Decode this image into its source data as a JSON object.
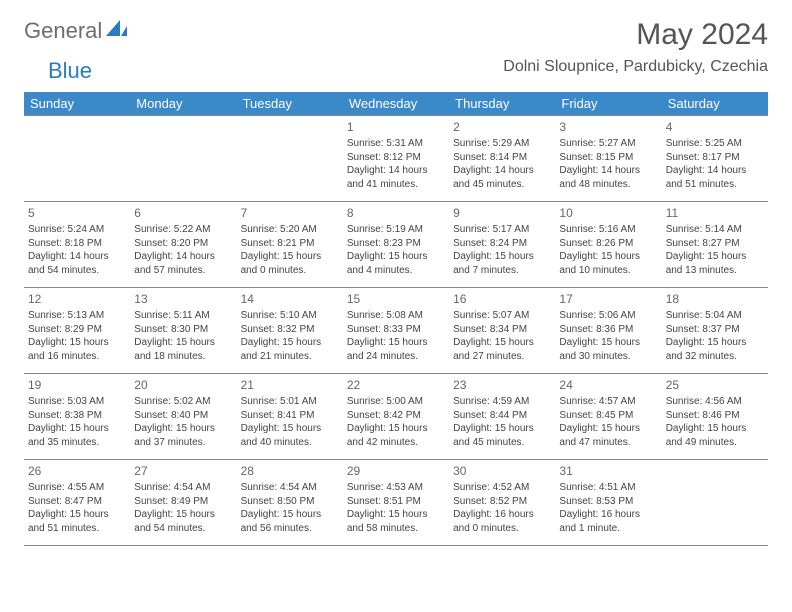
{
  "logo": {
    "text_general": "General",
    "text_blue": "Blue"
  },
  "title": "May 2024",
  "location": "Dolni Sloupnice, Pardubicky, Czechia",
  "colors": {
    "header_bg": "#3a89c9",
    "header_text": "#ffffff",
    "logo_gray": "#6e6e6e",
    "logo_blue": "#2b7bbf",
    "border": "#888888",
    "text": "#444444"
  },
  "weekdays": [
    "Sunday",
    "Monday",
    "Tuesday",
    "Wednesday",
    "Thursday",
    "Friday",
    "Saturday"
  ],
  "weeks": [
    [
      null,
      null,
      null,
      {
        "day": "1",
        "sunrise": "Sunrise: 5:31 AM",
        "sunset": "Sunset: 8:12 PM",
        "daylight": "Daylight: 14 hours and 41 minutes."
      },
      {
        "day": "2",
        "sunrise": "Sunrise: 5:29 AM",
        "sunset": "Sunset: 8:14 PM",
        "daylight": "Daylight: 14 hours and 45 minutes."
      },
      {
        "day": "3",
        "sunrise": "Sunrise: 5:27 AM",
        "sunset": "Sunset: 8:15 PM",
        "daylight": "Daylight: 14 hours and 48 minutes."
      },
      {
        "day": "4",
        "sunrise": "Sunrise: 5:25 AM",
        "sunset": "Sunset: 8:17 PM",
        "daylight": "Daylight: 14 hours and 51 minutes."
      }
    ],
    [
      {
        "day": "5",
        "sunrise": "Sunrise: 5:24 AM",
        "sunset": "Sunset: 8:18 PM",
        "daylight": "Daylight: 14 hours and 54 minutes."
      },
      {
        "day": "6",
        "sunrise": "Sunrise: 5:22 AM",
        "sunset": "Sunset: 8:20 PM",
        "daylight": "Daylight: 14 hours and 57 minutes."
      },
      {
        "day": "7",
        "sunrise": "Sunrise: 5:20 AM",
        "sunset": "Sunset: 8:21 PM",
        "daylight": "Daylight: 15 hours and 0 minutes."
      },
      {
        "day": "8",
        "sunrise": "Sunrise: 5:19 AM",
        "sunset": "Sunset: 8:23 PM",
        "daylight": "Daylight: 15 hours and 4 minutes."
      },
      {
        "day": "9",
        "sunrise": "Sunrise: 5:17 AM",
        "sunset": "Sunset: 8:24 PM",
        "daylight": "Daylight: 15 hours and 7 minutes."
      },
      {
        "day": "10",
        "sunrise": "Sunrise: 5:16 AM",
        "sunset": "Sunset: 8:26 PM",
        "daylight": "Daylight: 15 hours and 10 minutes."
      },
      {
        "day": "11",
        "sunrise": "Sunrise: 5:14 AM",
        "sunset": "Sunset: 8:27 PM",
        "daylight": "Daylight: 15 hours and 13 minutes."
      }
    ],
    [
      {
        "day": "12",
        "sunrise": "Sunrise: 5:13 AM",
        "sunset": "Sunset: 8:29 PM",
        "daylight": "Daylight: 15 hours and 16 minutes."
      },
      {
        "day": "13",
        "sunrise": "Sunrise: 5:11 AM",
        "sunset": "Sunset: 8:30 PM",
        "daylight": "Daylight: 15 hours and 18 minutes."
      },
      {
        "day": "14",
        "sunrise": "Sunrise: 5:10 AM",
        "sunset": "Sunset: 8:32 PM",
        "daylight": "Daylight: 15 hours and 21 minutes."
      },
      {
        "day": "15",
        "sunrise": "Sunrise: 5:08 AM",
        "sunset": "Sunset: 8:33 PM",
        "daylight": "Daylight: 15 hours and 24 minutes."
      },
      {
        "day": "16",
        "sunrise": "Sunrise: 5:07 AM",
        "sunset": "Sunset: 8:34 PM",
        "daylight": "Daylight: 15 hours and 27 minutes."
      },
      {
        "day": "17",
        "sunrise": "Sunrise: 5:06 AM",
        "sunset": "Sunset: 8:36 PM",
        "daylight": "Daylight: 15 hours and 30 minutes."
      },
      {
        "day": "18",
        "sunrise": "Sunrise: 5:04 AM",
        "sunset": "Sunset: 8:37 PM",
        "daylight": "Daylight: 15 hours and 32 minutes."
      }
    ],
    [
      {
        "day": "19",
        "sunrise": "Sunrise: 5:03 AM",
        "sunset": "Sunset: 8:38 PM",
        "daylight": "Daylight: 15 hours and 35 minutes."
      },
      {
        "day": "20",
        "sunrise": "Sunrise: 5:02 AM",
        "sunset": "Sunset: 8:40 PM",
        "daylight": "Daylight: 15 hours and 37 minutes."
      },
      {
        "day": "21",
        "sunrise": "Sunrise: 5:01 AM",
        "sunset": "Sunset: 8:41 PM",
        "daylight": "Daylight: 15 hours and 40 minutes."
      },
      {
        "day": "22",
        "sunrise": "Sunrise: 5:00 AM",
        "sunset": "Sunset: 8:42 PM",
        "daylight": "Daylight: 15 hours and 42 minutes."
      },
      {
        "day": "23",
        "sunrise": "Sunrise: 4:59 AM",
        "sunset": "Sunset: 8:44 PM",
        "daylight": "Daylight: 15 hours and 45 minutes."
      },
      {
        "day": "24",
        "sunrise": "Sunrise: 4:57 AM",
        "sunset": "Sunset: 8:45 PM",
        "daylight": "Daylight: 15 hours and 47 minutes."
      },
      {
        "day": "25",
        "sunrise": "Sunrise: 4:56 AM",
        "sunset": "Sunset: 8:46 PM",
        "daylight": "Daylight: 15 hours and 49 minutes."
      }
    ],
    [
      {
        "day": "26",
        "sunrise": "Sunrise: 4:55 AM",
        "sunset": "Sunset: 8:47 PM",
        "daylight": "Daylight: 15 hours and 51 minutes."
      },
      {
        "day": "27",
        "sunrise": "Sunrise: 4:54 AM",
        "sunset": "Sunset: 8:49 PM",
        "daylight": "Daylight: 15 hours and 54 minutes."
      },
      {
        "day": "28",
        "sunrise": "Sunrise: 4:54 AM",
        "sunset": "Sunset: 8:50 PM",
        "daylight": "Daylight: 15 hours and 56 minutes."
      },
      {
        "day": "29",
        "sunrise": "Sunrise: 4:53 AM",
        "sunset": "Sunset: 8:51 PM",
        "daylight": "Daylight: 15 hours and 58 minutes."
      },
      {
        "day": "30",
        "sunrise": "Sunrise: 4:52 AM",
        "sunset": "Sunset: 8:52 PM",
        "daylight": "Daylight: 16 hours and 0 minutes."
      },
      {
        "day": "31",
        "sunrise": "Sunrise: 4:51 AM",
        "sunset": "Sunset: 8:53 PM",
        "daylight": "Daylight: 16 hours and 1 minute."
      },
      null
    ]
  ]
}
